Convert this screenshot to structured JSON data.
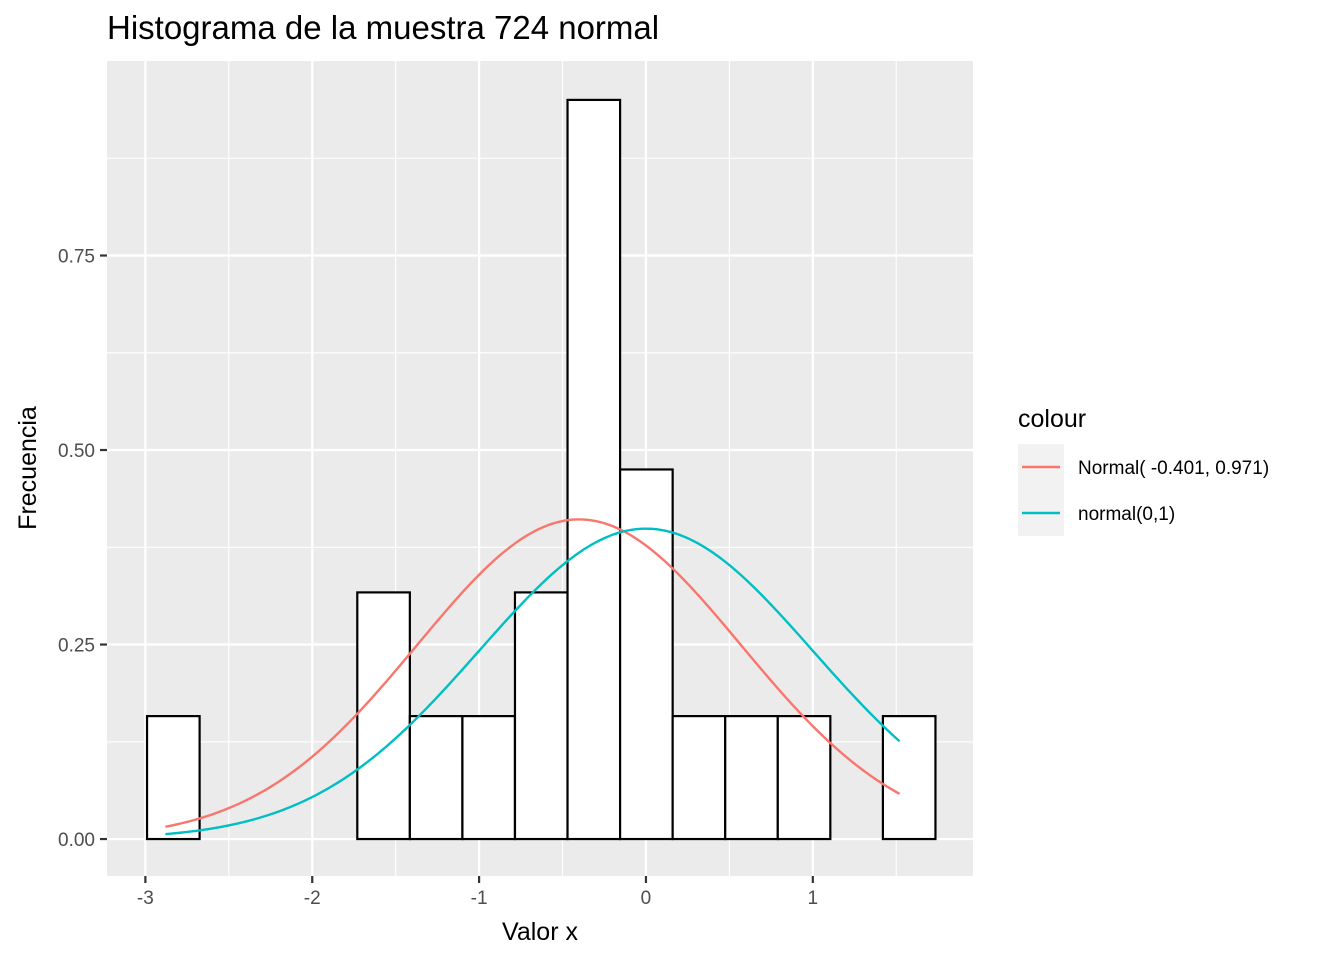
{
  "chart_data": {
    "type": "bar",
    "title": "Histograma de la  muestra 724 normal",
    "xlabel": "Valor x",
    "ylabel": "Frecuencia",
    "xlim": [
      -3.23,
      1.96
    ],
    "ylim": [
      -0.0475,
      1.0
    ],
    "x_ticks": [
      {
        "value": -3,
        "label": "-3"
      },
      {
        "value": -2,
        "label": "-2"
      },
      {
        "value": -1,
        "label": "-1"
      },
      {
        "value": 0,
        "label": "0"
      },
      {
        "value": 1,
        "label": "1"
      }
    ],
    "y_ticks": [
      {
        "value": 0,
        "label": "0.00"
      },
      {
        "value": 0.25,
        "label": "0.25"
      },
      {
        "value": 0.5,
        "label": "0.50"
      },
      {
        "value": 0.75,
        "label": "0.75"
      }
    ],
    "bins": [
      {
        "x0": -2.99,
        "x1": -2.675,
        "density": 0.158
      },
      {
        "x0": -2.675,
        "x1": -2.36,
        "density": 0
      },
      {
        "x0": -2.36,
        "x1": -2.045,
        "density": 0
      },
      {
        "x0": -2.045,
        "x1": -1.73,
        "density": 0
      },
      {
        "x0": -1.73,
        "x1": -1.415,
        "density": 0.317
      },
      {
        "x0": -1.415,
        "x1": -1.1,
        "density": 0.158
      },
      {
        "x0": -1.1,
        "x1": -0.785,
        "density": 0.158
      },
      {
        "x0": -0.785,
        "x1": -0.47,
        "density": 0.317
      },
      {
        "x0": -0.47,
        "x1": -0.155,
        "density": 0.95
      },
      {
        "x0": -0.155,
        "x1": 0.16,
        "density": 0.475
      },
      {
        "x0": 0.16,
        "x1": 0.475,
        "density": 0.158
      },
      {
        "x0": 0.475,
        "x1": 0.79,
        "density": 0.158
      },
      {
        "x0": 0.79,
        "x1": 1.105,
        "density": 0.158
      },
      {
        "x0": 1.105,
        "x1": 1.42,
        "density": 0
      },
      {
        "x0": 1.42,
        "x1": 1.735,
        "density": 0.158
      }
    ],
    "series": [
      {
        "name": "Normal( -0.401, 0.971)",
        "type": "line",
        "distribution": "normal",
        "mean": -0.401,
        "sd": 0.971,
        "x_range": [
          -2.88,
          1.52
        ],
        "color": "#F8766D"
      },
      {
        "name": "normal(0,1)",
        "type": "line",
        "distribution": "normal",
        "mean": 0,
        "sd": 1,
        "x_range": [
          -2.88,
          1.52
        ],
        "color": "#00BFC4"
      }
    ],
    "legend": {
      "title": "colour",
      "position": "right"
    },
    "grid": true,
    "panel_background": "#EBEBEB",
    "bar_fill": "#FFFFFF",
    "bar_outline": "#000000"
  }
}
